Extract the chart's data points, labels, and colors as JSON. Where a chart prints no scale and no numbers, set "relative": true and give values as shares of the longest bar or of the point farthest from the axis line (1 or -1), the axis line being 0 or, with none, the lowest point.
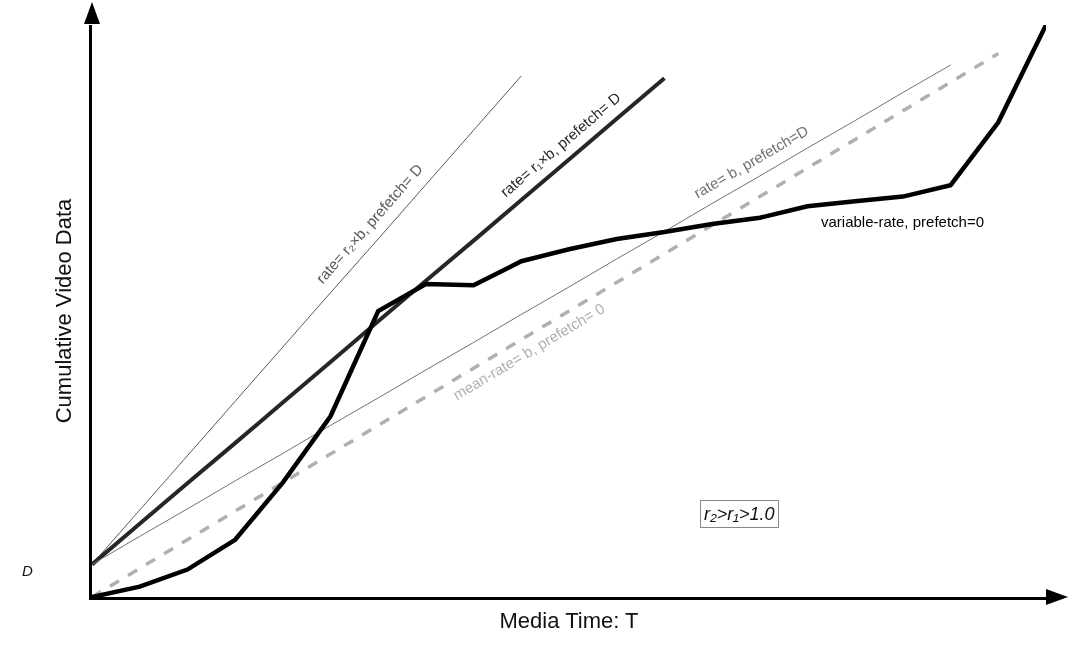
{
  "chart_data": {
    "type": "line",
    "relative": true,
    "xlabel": "Media Time: T",
    "ylabel": "Cumulative Video Data",
    "grid": false,
    "legend": false,
    "categories": [
      null,
      null,
      null,
      null,
      null,
      null,
      null,
      null,
      null,
      null,
      null,
      null,
      null,
      null,
      null,
      null,
      null,
      null,
      null,
      null,
      null
    ],
    "series": [
      {
        "name": "rate= r₂×b, prefetch= D",
        "color": "#5a5a5a",
        "values": [
          0.057,
          0.152,
          0.247,
          0.342,
          0.437,
          0.532,
          0.626,
          0.721,
          0.816,
          0.911,
          null,
          null,
          null,
          null,
          null,
          null,
          null,
          null,
          null,
          null,
          null
        ]
      },
      {
        "name": "rate= r₁×b, prefetch= D",
        "color": "#262626",
        "values": [
          0.057,
          0.128,
          0.199,
          0.269,
          0.34,
          0.411,
          0.482,
          0.553,
          0.623,
          0.694,
          0.765,
          0.836,
          0.907,
          null,
          null,
          null,
          null,
          null,
          null,
          null,
          null
        ]
      },
      {
        "name": "rate= b, prefetch=D",
        "color": "#707070",
        "values": [
          0.057,
          0.106,
          0.154,
          0.203,
          0.251,
          0.3,
          0.348,
          0.397,
          0.445,
          0.494,
          0.542,
          0.591,
          0.639,
          0.688,
          0.736,
          0.785,
          0.833,
          0.882,
          0.93,
          null,
          null
        ]
      },
      {
        "name": "mean-rate= b, prefetch= 0",
        "color": "#b0b0b0",
        "line_style": "dashed",
        "values": [
          0,
          0.05,
          0.1,
          0.15,
          0.2,
          0.25,
          0.3,
          0.35,
          0.4,
          0.45,
          0.5,
          0.55,
          0.6,
          0.65,
          0.7,
          0.75,
          0.8,
          0.85,
          0.9,
          0.95,
          null
        ]
      },
      {
        "name": "variable-rate, prefetch=0",
        "color": "#000000",
        "values": [
          0,
          0.018,
          0.048,
          0.1,
          0.2,
          0.316,
          0.5,
          0.547,
          0.545,
          0.587,
          0.608,
          0.626,
          0.638,
          0.652,
          0.663,
          0.683,
          0.692,
          0.7,
          0.72,
          0.83,
          1.0
        ]
      }
    ],
    "annotations": [
      "D",
      "r₂>r₁>1.0"
    ]
  }
}
